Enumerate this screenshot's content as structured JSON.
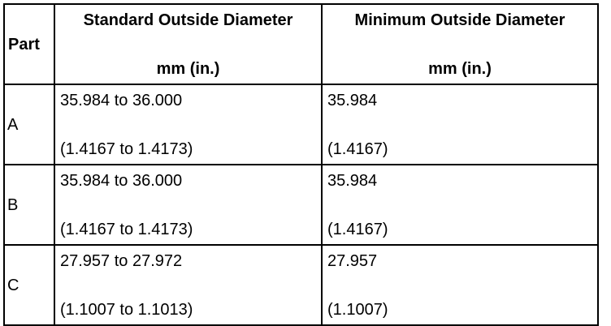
{
  "table": {
    "headers": [
      "Part",
      [
        "Standard Outside Diameter",
        "mm (in.)"
      ],
      [
        "Minimum Outside Diameter",
        "mm (in.)"
      ]
    ],
    "rows": [
      [
        "A",
        [
          "35.984 to 36.000",
          "(1.4167 to 1.4173)"
        ],
        [
          "35.984",
          "(1.4167)"
        ]
      ],
      [
        "B",
        [
          "35.984 to 36.000",
          "(1.4167 to 1.4173)"
        ],
        [
          "35.984",
          "(1.4167)"
        ]
      ],
      [
        "C",
        [
          "27.957 to 27.972",
          "(1.1007 to 1.1013)"
        ],
        [
          "27.957",
          "(1.1007)"
        ]
      ]
    ]
  }
}
